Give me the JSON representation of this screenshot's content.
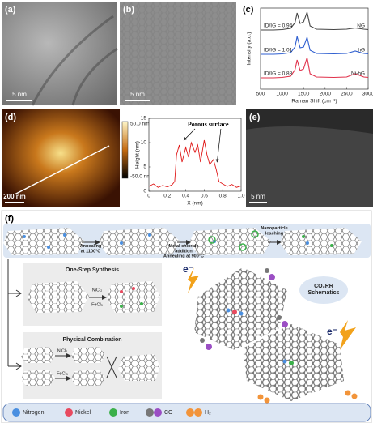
{
  "figure": {
    "a": {
      "label": "(a)",
      "scale": "5 nm"
    },
    "b": {
      "label": "(b)",
      "scale": "5 nm"
    },
    "d": {
      "label": "(d)",
      "scale": "200 nm",
      "cbar_top": "50.0 nm",
      "cbar_bottom": "-50.0 nm"
    },
    "e": {
      "label": "(e)",
      "scale": "5 nm"
    },
    "f": {
      "label": "(f)",
      "step1": "Annealing\nat 1100°C",
      "step2": "Metal chloride\naddition\nAnnealing at 900°C",
      "step3": "Nanoparticle\nleaching",
      "one_step": "One-Step Synthesis",
      "one_step_ni": "NiCl₂",
      "one_step_fe": "FeCl₃",
      "physical": "Physical Combination",
      "physical_ni": "NiCl₂",
      "physical_fe": "FeCl₃",
      "co2rr": "CO₂RR\nSchematics",
      "electron_1": "e⁻",
      "electron_2": "e⁻",
      "legend": [
        "Nitrogen",
        "Nickel",
        "Iron",
        "CO",
        "H₂"
      ]
    }
  },
  "chart_data": [
    {
      "type": "line",
      "label": "(c)",
      "xlabel": "Raman Shift (cm⁻¹)",
      "ylabel": "Intensity (a.u.)",
      "xlim": [
        500,
        3000
      ],
      "xticks": [
        500,
        1000,
        1500,
        2000,
        2500,
        3000
      ],
      "ylim": [
        0,
        10
      ],
      "x": [
        500,
        800,
        1000,
        1200,
        1300,
        1350,
        1420,
        1500,
        1580,
        1650,
        1800,
        2200,
        2500,
        2700,
        2900,
        3000
      ],
      "series": [
        {
          "name": "NG",
          "ratio": "ID/IG = 0.94",
          "color": "#444444",
          "values": [
            7.3,
            7.3,
            7.35,
            7.5,
            8.2,
            9.4,
            8.1,
            8.3,
            9.5,
            7.8,
            7.4,
            7.35,
            7.4,
            7.55,
            7.4,
            7.35
          ]
        },
        {
          "name": "hG",
          "ratio": "ID/IG = 1.01",
          "color": "#2f5fd0",
          "values": [
            4.3,
            4.3,
            4.35,
            4.5,
            5.2,
            6.5,
            5.1,
            5.2,
            6.4,
            4.8,
            4.4,
            4.35,
            4.4,
            4.7,
            4.4,
            4.35
          ]
        },
        {
          "name": "Ni-hG",
          "ratio": "ID/IG = 0.88",
          "color": "#e0304a",
          "values": [
            1.4,
            1.4,
            1.45,
            1.6,
            2.4,
            3.6,
            2.3,
            2.5,
            3.9,
            1.9,
            1.5,
            1.45,
            1.5,
            1.9,
            1.5,
            1.45
          ]
        }
      ]
    },
    {
      "type": "line",
      "xlabel": "X (nm)",
      "ylabel": "Height (nm)",
      "annotation": "Porous surface",
      "xlim": [
        0,
        1
      ],
      "xticks": [
        0,
        0.2,
        0.4,
        0.6,
        0.8,
        {
          "value": 1,
          "label": "1.0"
        }
      ],
      "ylim": [
        0,
        15
      ],
      "yticks": [
        0,
        5,
        10,
        15
      ],
      "color": "#e01818",
      "x": [
        0,
        0.05,
        0.1,
        0.15,
        0.2,
        0.25,
        0.28,
        0.3,
        0.33,
        0.36,
        0.4,
        0.43,
        0.46,
        0.5,
        0.53,
        0.56,
        0.6,
        0.63,
        0.66,
        0.7,
        0.73,
        0.76,
        0.8,
        0.85,
        0.9,
        0.95,
        1
      ],
      "values": [
        1,
        1.5,
        0.8,
        1.2,
        0.9,
        1.3,
        2,
        7.5,
        9.5,
        6,
        9,
        7,
        10,
        8,
        9.5,
        6,
        10.5,
        7.5,
        5.5,
        6.5,
        4.5,
        2,
        1.5,
        1,
        1.4,
        0.8,
        1.1
      ]
    }
  ]
}
